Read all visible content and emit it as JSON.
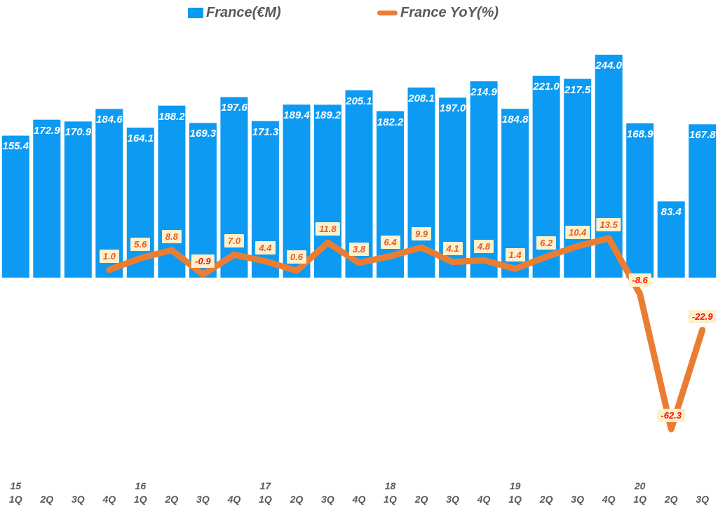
{
  "legend": {
    "bar_label": "France(€M)",
    "line_label": "France YoY(%)"
  },
  "colors": {
    "bar": "#0D9AF2",
    "line": "#EB7D33",
    "bar_value_text": "#FFFFFF",
    "yoy_label_bg": "#FDF1CC",
    "yoy_label_positive_text": "#E25B2B",
    "yoy_label_negative_text": "#FB0A0A",
    "axis_text": "#595959",
    "legend_text": "#595959"
  },
  "chart_data": {
    "type": "bar",
    "subtype": "combo-bar-line",
    "title": "",
    "legend_position": "top",
    "gridlines": false,
    "y_axis_visible": false,
    "value_labels_shown": true,
    "categories": [
      {
        "year": "15",
        "quarter": "1Q"
      },
      {
        "year": "",
        "quarter": "2Q"
      },
      {
        "year": "",
        "quarter": "3Q"
      },
      {
        "year": "",
        "quarter": "4Q"
      },
      {
        "year": "16",
        "quarter": "1Q"
      },
      {
        "year": "",
        "quarter": "2Q"
      },
      {
        "year": "",
        "quarter": "3Q"
      },
      {
        "year": "",
        "quarter": "4Q"
      },
      {
        "year": "17",
        "quarter": "1Q"
      },
      {
        "year": "",
        "quarter": "2Q"
      },
      {
        "year": "",
        "quarter": "3Q"
      },
      {
        "year": "",
        "quarter": "4Q"
      },
      {
        "year": "18",
        "quarter": "1Q"
      },
      {
        "year": "",
        "quarter": "2Q"
      },
      {
        "year": "",
        "quarter": "3Q"
      },
      {
        "year": "",
        "quarter": "4Q"
      },
      {
        "year": "19",
        "quarter": "1Q"
      },
      {
        "year": "",
        "quarter": "2Q"
      },
      {
        "year": "",
        "quarter": "3Q"
      },
      {
        "year": "",
        "quarter": "4Q"
      },
      {
        "year": "20",
        "quarter": "1Q"
      },
      {
        "year": "",
        "quarter": "2Q"
      },
      {
        "year": "",
        "quarter": "3Q"
      }
    ],
    "series": [
      {
        "name": "France(€M)",
        "type": "bar",
        "values": [
          155.4,
          172.9,
          170.9,
          184.6,
          164.1,
          188.2,
          169.3,
          197.6,
          171.3,
          189.4,
          189.2,
          205.1,
          182.2,
          208.1,
          197.0,
          214.9,
          184.8,
          221.0,
          217.5,
          244.0,
          168.9,
          83.4,
          167.8
        ]
      },
      {
        "name": "France YoY(%)",
        "type": "line",
        "values": [
          null,
          null,
          null,
          1.0,
          5.6,
          8.8,
          -0.9,
          7.0,
          4.4,
          0.6,
          11.8,
          3.8,
          6.4,
          9.9,
          4.1,
          4.8,
          1.4,
          6.2,
          10.4,
          13.5,
          -8.6,
          -62.3,
          -22.9
        ]
      }
    ]
  }
}
